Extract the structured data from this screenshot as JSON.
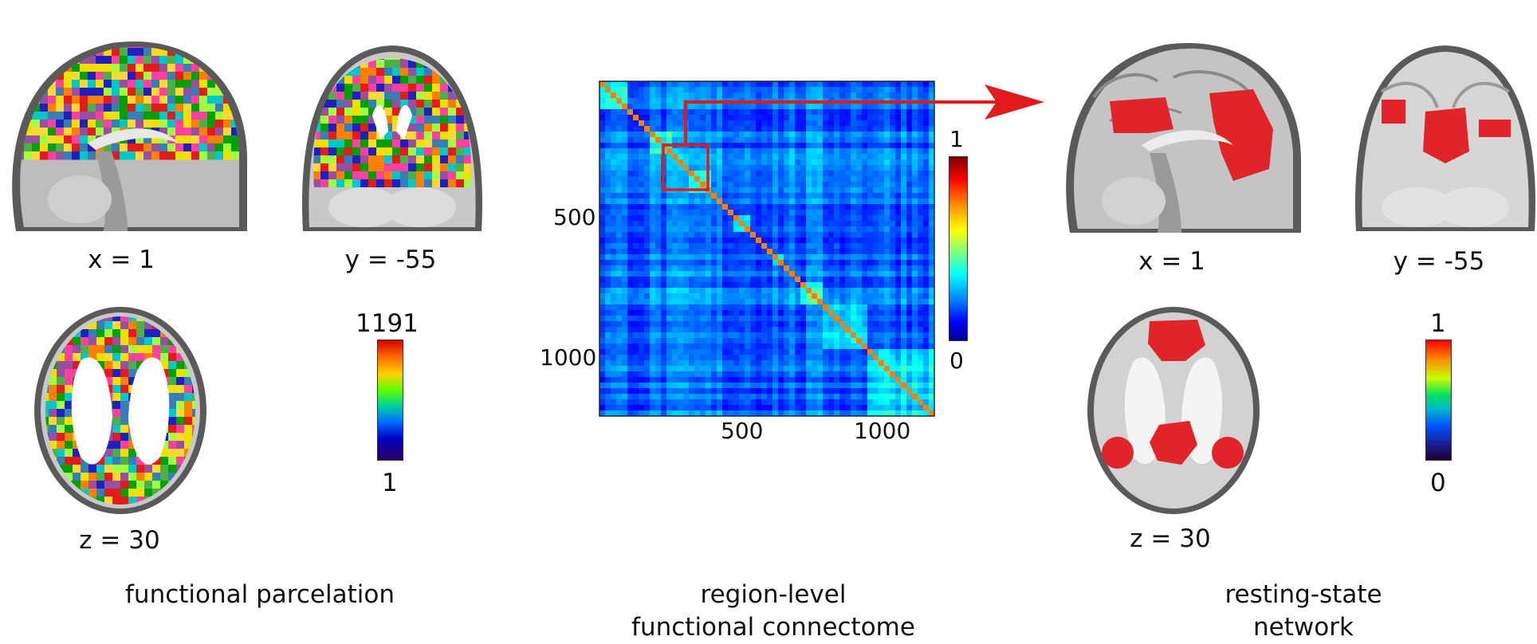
{
  "panels": {
    "parcelation": {
      "caption": "functional parcelation",
      "sagittal_label": "x = 1",
      "coronal_label": "y = -55",
      "axial_label": "z = 30",
      "colorbar_max": "1191",
      "colorbar_min": "1"
    },
    "connectome": {
      "caption_line1": "region-level",
      "caption_line2": "functional connectome",
      "y_ticks": [
        "500",
        "1000"
      ],
      "x_ticks": [
        "500",
        "1000"
      ],
      "colorbar_max": "1",
      "colorbar_min": "0"
    },
    "network": {
      "caption_line1": "resting-state",
      "caption_line2": "network",
      "sagittal_label": "x = 1",
      "coronal_label": "y = -55",
      "axial_label": "z = 30",
      "colorbar_max": "1",
      "colorbar_min": "0"
    }
  },
  "colors": {
    "highlight": "#e11b1b",
    "network_blob": "#e0242a",
    "matrix_base": "#1e5ee6"
  }
}
